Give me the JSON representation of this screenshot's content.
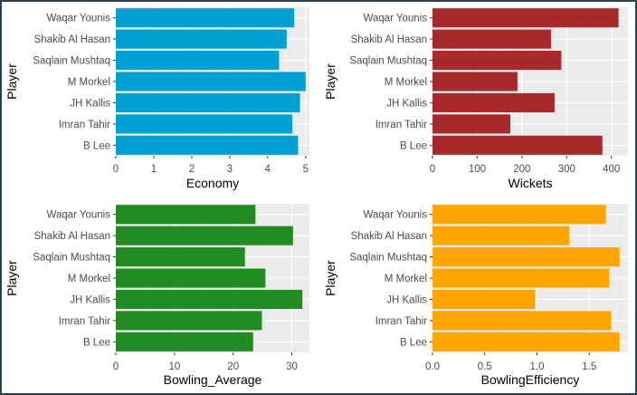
{
  "chart_data": [
    {
      "type": "bar",
      "orientation": "horizontal",
      "xlabel": "Economy",
      "ylabel": "Player",
      "categories": [
        "Waqar Younis",
        "Shakib Al Hasan",
        "Saqlain Mushtaq",
        "M Morkel",
        "JH Kallis",
        "Imran Tahir",
        "B Lee"
      ],
      "values": [
        4.7,
        4.5,
        4.3,
        5.0,
        4.85,
        4.65,
        4.8
      ],
      "xlim": [
        0,
        5.1
      ],
      "xticks": [
        0,
        1,
        2,
        3,
        4,
        5
      ],
      "xtick_labels": [
        "0",
        "1",
        "2",
        "3",
        "4",
        "5"
      ],
      "color": "#00a0d2",
      "grid": true
    },
    {
      "type": "bar",
      "orientation": "horizontal",
      "xlabel": "Wickets",
      "ylabel": "Player",
      "categories": [
        "Waqar Younis",
        "Shakib Al Hasan",
        "Saqlain Mushtaq",
        "M Morkel",
        "JH Kallis",
        "Imran Tahir",
        "B Lee"
      ],
      "values": [
        416,
        265,
        288,
        190,
        273,
        174,
        380
      ],
      "xlim": [
        0,
        437
      ],
      "xticks": [
        0,
        100,
        200,
        300,
        400
      ],
      "xtick_labels": [
        "0",
        "100",
        "200",
        "300",
        "400"
      ],
      "color": "#a8292c",
      "grid": true
    },
    {
      "type": "bar",
      "orientation": "horizontal",
      "xlabel": "Bowling_Average",
      "ylabel": "Player",
      "categories": [
        "Waqar Younis",
        "Shakib Al Hasan",
        "Saqlain Mushtaq",
        "M Morkel",
        "JH Kallis",
        "Imran Tahir",
        "B Lee"
      ],
      "values": [
        23.8,
        30.2,
        22.0,
        25.5,
        31.8,
        24.9,
        23.4
      ],
      "xlim": [
        0,
        33
      ],
      "xticks": [
        0,
        10,
        20,
        30
      ],
      "xtick_labels": [
        "0",
        "10",
        "20",
        "30"
      ],
      "color": "#228b22",
      "grid": true
    },
    {
      "type": "bar",
      "orientation": "horizontal",
      "xlabel": "BowlingEfficiency",
      "ylabel": "Player",
      "categories": [
        "Waqar Younis",
        "Shakib Al Hasan",
        "Saqlain Mushtaq",
        "M Morkel",
        "JH Kallis",
        "Imran Tahir",
        "B Lee"
      ],
      "values": [
        1.66,
        1.31,
        1.79,
        1.69,
        0.98,
        1.71,
        1.79
      ],
      "xlim": [
        0,
        1.87
      ],
      "xticks": [
        0,
        0.5,
        1,
        1.5
      ],
      "xtick_labels": [
        "0.0",
        "0.5",
        "1.0",
        "1.5"
      ],
      "color": "#ffa500",
      "grid": true
    }
  ]
}
